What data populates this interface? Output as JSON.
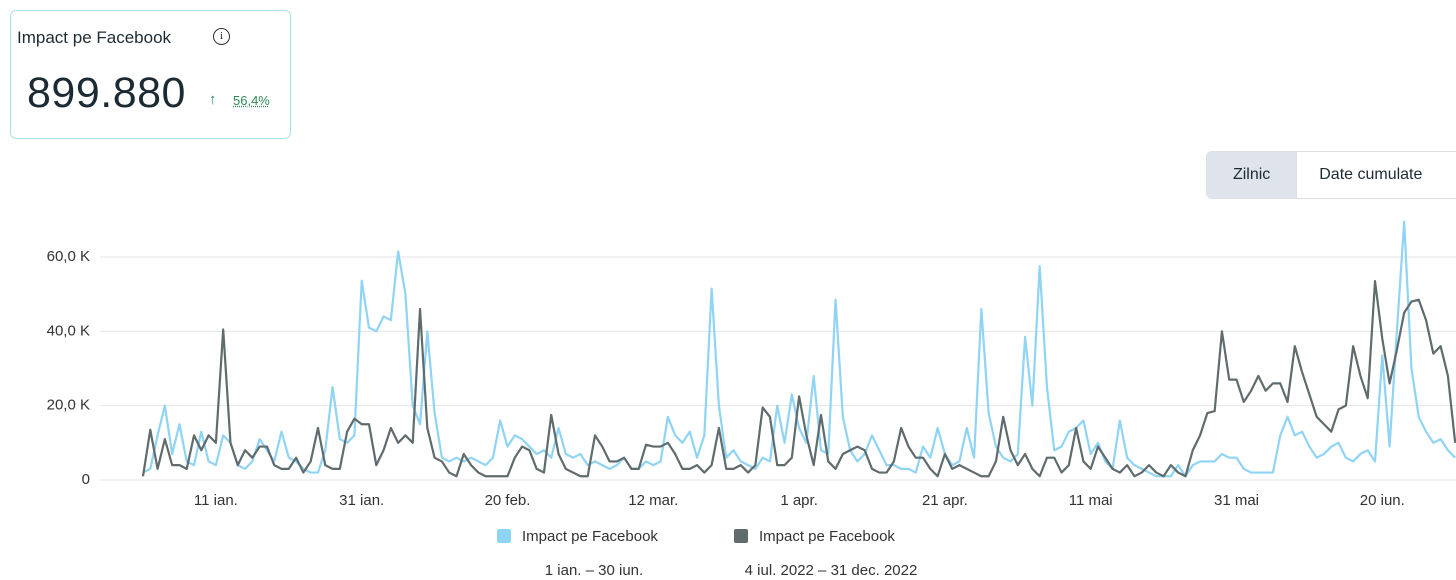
{
  "header": {
    "title": "Impact pe Facebook",
    "value": "899.880",
    "change": "56,4%"
  },
  "controls": [
    "Zilnic",
    "Date cumulate"
  ],
  "chart_data": {
    "type": "line",
    "categories": [
      null,
      null,
      null,
      null,
      null,
      null,
      null,
      null,
      null,
      null,
      "11 ian.",
      null,
      null,
      null,
      null,
      null,
      null,
      null,
      null,
      null,
      null,
      null,
      null,
      null,
      null,
      null,
      null,
      null,
      null,
      null,
      "31 ian.",
      null,
      null,
      null,
      null,
      null,
      null,
      null,
      null,
      null,
      null,
      null,
      null,
      null,
      null,
      null,
      null,
      null,
      null,
      null,
      "20 feb.",
      null,
      null,
      null,
      null,
      null,
      null,
      null,
      null,
      null,
      null,
      null,
      null,
      null,
      null,
      null,
      null,
      null,
      null,
      null,
      "12 mar.",
      null,
      null,
      null,
      null,
      null,
      null,
      null,
      null,
      null,
      null,
      null,
      null,
      null,
      null,
      null,
      null,
      null,
      null,
      null,
      "1 apr.",
      null,
      null,
      null,
      null,
      null,
      null,
      null,
      null,
      null,
      null,
      null,
      null,
      null,
      null,
      null,
      null,
      null,
      null,
      null,
      "21 apr.",
      null,
      null,
      null,
      null,
      null,
      null,
      null,
      null,
      null,
      null,
      null,
      null,
      null,
      null,
      null,
      null,
      null,
      null,
      null,
      "11 mai",
      null,
      null,
      null,
      null,
      null,
      null,
      null,
      null,
      null,
      null,
      null,
      null,
      null,
      null,
      null,
      null,
      null,
      null,
      null,
      "31 mai",
      null,
      null,
      null,
      null,
      null,
      null,
      null,
      null,
      null,
      null,
      null,
      null,
      null,
      null,
      null,
      null,
      null,
      null,
      null,
      "20 iun.",
      null,
      null,
      null,
      null,
      null,
      null,
      null,
      null,
      null,
      null
    ],
    "series": [
      {
        "name": "Impact pe Facebook",
        "period": "1 ian. – 30 iun.",
        "color": "#8fd4f5",
        "values": [
          2000,
          3000,
          12000,
          20000,
          7000,
          15000,
          5000,
          4000,
          13000,
          5000,
          4000,
          12000,
          10000,
          4000,
          3000,
          5000,
          11000,
          8000,
          5000,
          13000,
          6000,
          5000,
          3000,
          2000,
          2000,
          8000,
          25000,
          11000,
          10000,
          12000,
          53600,
          41000,
          40000,
          44000,
          43000,
          61500,
          50000,
          20000,
          15000,
          40000,
          18000,
          6000,
          5000,
          6000,
          5000,
          6000,
          5000,
          4000,
          6000,
          16000,
          9000,
          12000,
          11000,
          9000,
          7000,
          8000,
          6000,
          14000,
          7000,
          6000,
          7000,
          4000,
          5000,
          4000,
          3000,
          4000,
          6000,
          3000,
          3000,
          5000,
          4000,
          5000,
          17000,
          12000,
          10000,
          13000,
          6000,
          12000,
          51500,
          20000,
          6000,
          8000,
          5000,
          4000,
          3000,
          6000,
          5000,
          20000,
          10000,
          23000,
          14000,
          10000,
          28000,
          8000,
          7000,
          48500,
          17000,
          8000,
          5000,
          7000,
          12000,
          8000,
          4000,
          4000,
          3000,
          3000,
          2000,
          9000,
          6000,
          14000,
          7000,
          4000,
          5000,
          14000,
          6000,
          46000,
          18000,
          9000,
          6000,
          5000,
          7000,
          38500,
          20000,
          57500,
          25000,
          8000,
          9000,
          13000,
          14000,
          16000,
          7000,
          10000,
          5000,
          3000,
          16000,
          6000,
          4000,
          3000,
          2000,
          1000,
          1000,
          1000,
          4000,
          1000,
          4000,
          5000,
          5000,
          5000,
          7000,
          6000,
          6000,
          3000,
          2000,
          2000,
          2000,
          2000,
          12000,
          17000,
          12000,
          13000,
          9000,
          6000,
          7000,
          9000,
          10000,
          6000,
          5000,
          7000,
          8000,
          5000,
          33500,
          9000,
          40000,
          69500,
          30000,
          17000,
          13000,
          10000,
          11000,
          8000,
          6000
        ]
      },
      {
        "name": "Impact pe Facebook",
        "period": "4 iul. 2022 – 31 dec. 2022",
        "color": "#5f6b6d",
        "values": [
          1000,
          13500,
          3000,
          11000,
          4000,
          4000,
          3000,
          12000,
          8000,
          12000,
          10000,
          40500,
          10000,
          4000,
          8000,
          6000,
          9000,
          9000,
          4000,
          3000,
          3000,
          6000,
          2000,
          5000,
          14000,
          4000,
          3000,
          3000,
          13000,
          16500,
          15000,
          15000,
          4000,
          8000,
          14000,
          10000,
          12000,
          10000,
          46000,
          14000,
          6000,
          5000,
          2000,
          1000,
          7000,
          4000,
          2000,
          1000,
          1000,
          1000,
          1000,
          6000,
          9000,
          8000,
          3000,
          2000,
          17500,
          7000,
          3000,
          2000,
          1000,
          1000,
          12000,
          9000,
          5000,
          5000,
          6000,
          3000,
          3000,
          9500,
          9000,
          9000,
          10000,
          7000,
          3000,
          3000,
          4000,
          2000,
          4000,
          14000,
          3000,
          3000,
          4000,
          2000,
          4000,
          19500,
          17000,
          4000,
          4000,
          6000,
          22500,
          12000,
          4000,
          17500,
          5000,
          3000,
          7000,
          8000,
          9000,
          8000,
          3000,
          2000,
          2000,
          5000,
          14000,
          9000,
          6000,
          6000,
          3000,
          1000,
          7000,
          3000,
          4000,
          3000,
          2000,
          1000,
          1000,
          5000,
          17000,
          8000,
          4000,
          7000,
          3000,
          1000,
          6000,
          6000,
          2000,
          4000,
          14000,
          5000,
          3000,
          9000,
          6000,
          3000,
          2000,
          4000,
          1000,
          2000,
          4000,
          2000,
          1000,
          4000,
          2000,
          1000,
          8000,
          12000,
          18000,
          18500,
          40000,
          27000,
          27000,
          21000,
          24000,
          28000,
          24000,
          26000,
          26000,
          21000,
          36000,
          29000,
          23000,
          17000,
          15000,
          13000,
          19000,
          20000,
          36000,
          28000,
          22000,
          53500,
          38000,
          26000,
          35000,
          45000,
          48000,
          48500,
          43000,
          34000,
          36000,
          28000,
          10000
        ]
      }
    ],
    "ylim": [
      0,
      70000
    ],
    "yticks": [
      0,
      {
        "value": 20000,
        "label": "20,0 K"
      },
      {
        "value": 40000,
        "label": "40,0 K"
      },
      {
        "value": 60000,
        "label": "60,0 K"
      }
    ],
    "grid": true
  }
}
